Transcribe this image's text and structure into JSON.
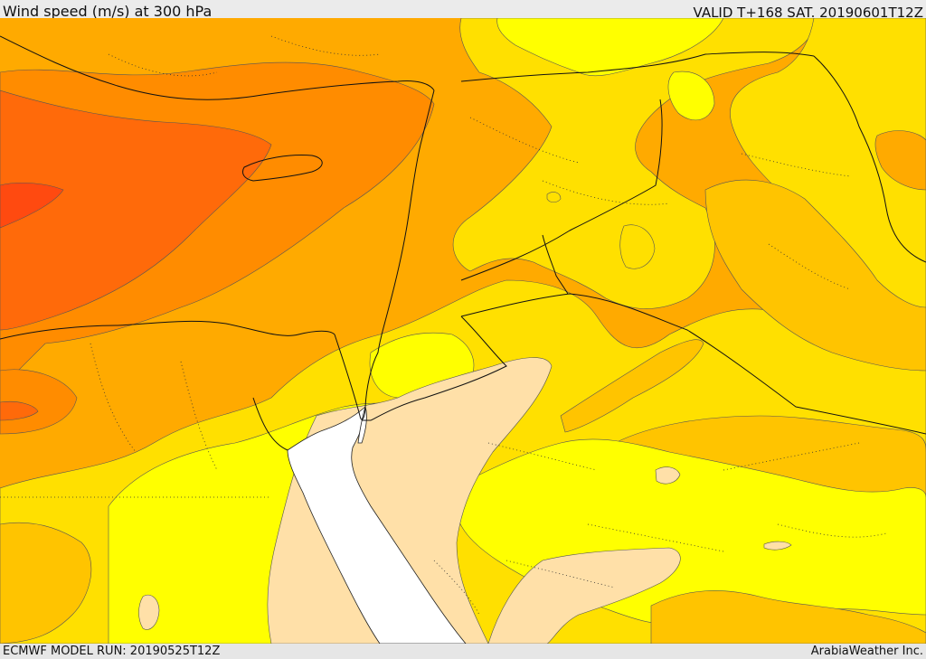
{
  "header": {
    "title": "Wind speed (m/s) at 300 hPa",
    "valid": "VALID T+168 SAT. 20190601T12Z"
  },
  "footer": {
    "model_run": "ECMWF MODEL RUN: 20190525T12Z",
    "credit": "ArabiaWeather Inc."
  },
  "map": {
    "fill_colors": {
      "strongest": "#ff4a10",
      "stronger": "#ff6a0a",
      "strong": "#ff8c00",
      "moderate": "#ffaa00",
      "moderate_light": "#ffc400",
      "light": "#ffe000",
      "lighter": "#ffff00",
      "lightest": "#ffe0a8",
      "sea": "#ffffff"
    }
  }
}
